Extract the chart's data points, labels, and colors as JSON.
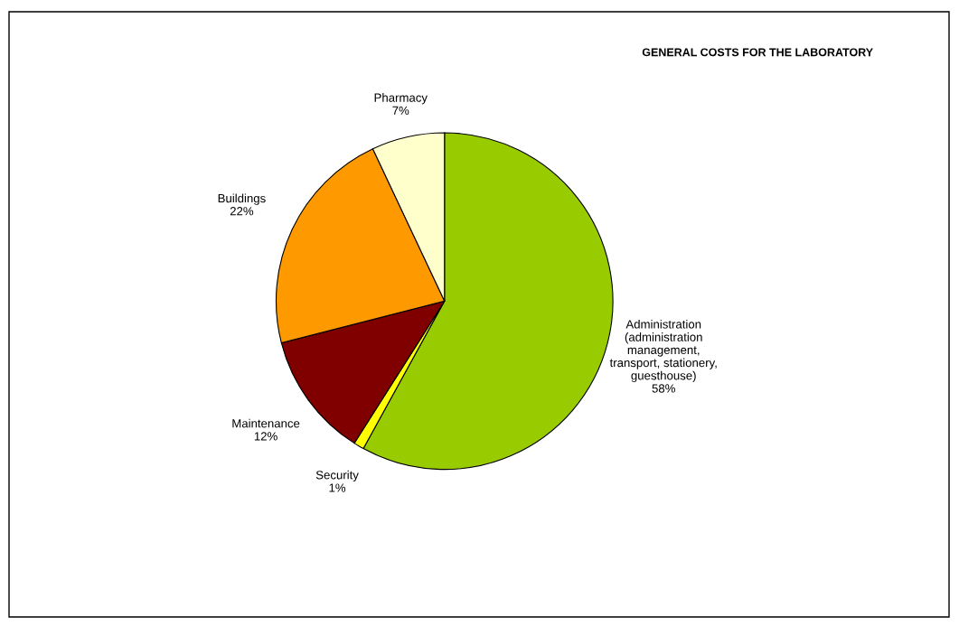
{
  "chart_data": {
    "type": "pie",
    "title": "GENERAL COSTS FOR THE LABORATORY",
    "categories": [
      "Administration\n(administration\nmanagement,\ntransport, stationery,\nguesthouse)",
      "Security",
      "Maintenance",
      "Buildings",
      "Pharmacy"
    ],
    "values": [
      58,
      1,
      12,
      22,
      7
    ],
    "colors": [
      "#99cc00",
      "#ffff00",
      "#800000",
      "#ff9900",
      "#ffffcc"
    ],
    "value_labels": [
      "58%",
      "1%",
      "12%",
      "22%",
      "7%"
    ],
    "legend": false
  }
}
